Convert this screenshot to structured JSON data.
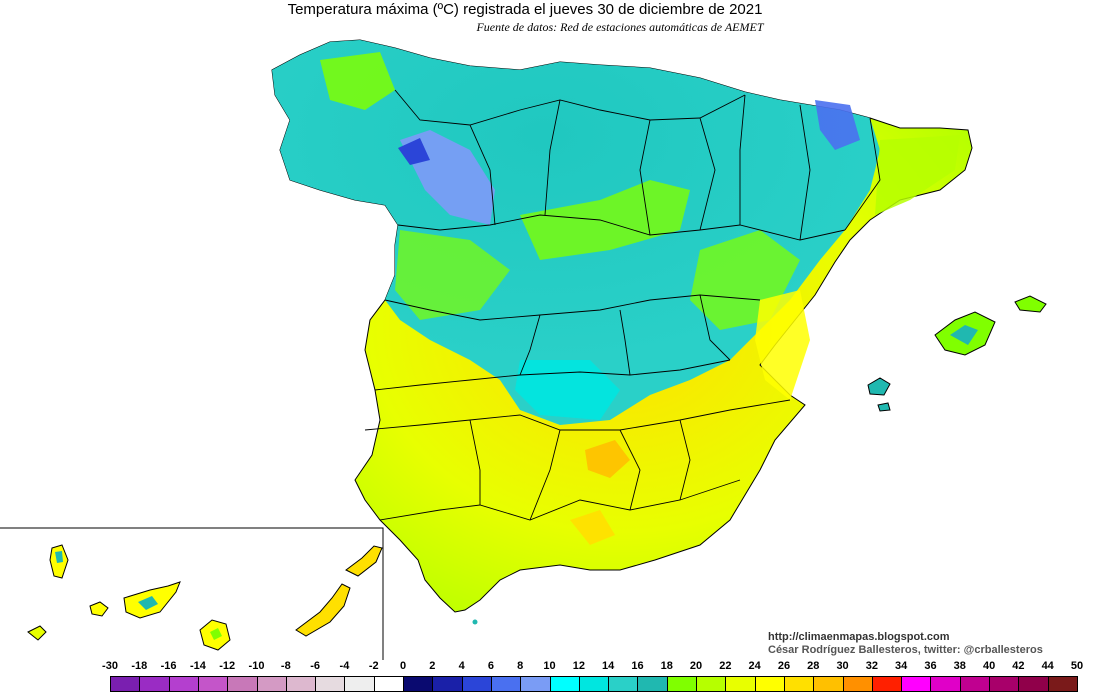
{
  "title": "Temperatura máxima (ºC) registrada el jueves 30 de diciembre de 2021",
  "subtitle": "Fuente de datos: Red de estaciones automáticas de AEMET",
  "credits": {
    "blog": "http://climaenmapas.blogspot.com",
    "author": "César Rodríguez Ballesteros, twitter: @crballesteros"
  },
  "legend": {
    "ticks": [
      "-30",
      "-18",
      "-16",
      "-14",
      "-12",
      "-10",
      "-8",
      "-6",
      "-4",
      "-2",
      "0",
      "2",
      "4",
      "6",
      "8",
      "10",
      "12",
      "14",
      "16",
      "18",
      "20",
      "22",
      "24",
      "26",
      "28",
      "30",
      "32",
      "34",
      "36",
      "38",
      "40",
      "42",
      "44",
      "50"
    ],
    "colors": [
      "#7a1fb0",
      "#9a2cc4",
      "#b43fcf",
      "#c455c9",
      "#c878b8",
      "#d49ac4",
      "#ddb8cf",
      "#e6dbe0",
      "#eeeeee",
      "#ffffff",
      "#0a0a70",
      "#1a20a8",
      "#2b45d8",
      "#4a70f0",
      "#7a9cf5",
      "#00ffff",
      "#00e6e0",
      "#2ad0c8",
      "#20b8b0",
      "#80ff00",
      "#b6ff00",
      "#e8ff00",
      "#ffff00",
      "#ffe000",
      "#ffc000",
      "#ff9000",
      "#ff2000",
      "#ff00ff",
      "#e000c8",
      "#c00090",
      "#a8006a",
      "#90004a",
      "#7a1a1a"
    ]
  },
  "map": {
    "sea_color": "#ffffff",
    "border_color": "#000000",
    "dominant_colors": [
      "#20b8b0",
      "#80ff00",
      "#e8ff00",
      "#4a70f0",
      "#ffc000"
    ]
  }
}
